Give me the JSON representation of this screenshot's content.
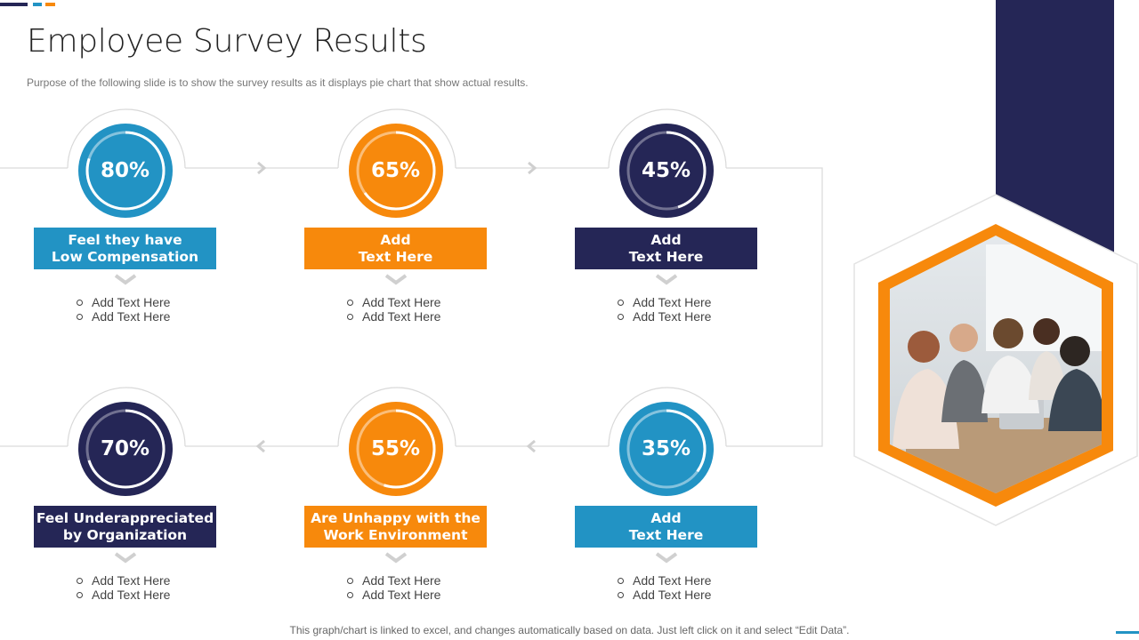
{
  "slide": {
    "title": "Employee Survey Results",
    "subtitle": "Purpose of the following slide is to show the survey results as it displays pie chart that show actual results.",
    "footer": "This graph/chart is linked to excel,  and changes automatically based on data. Just left click on it and select “Edit Data”."
  },
  "colors": {
    "blue": "#2293c4",
    "orange": "#f7890c",
    "navy": "#252656",
    "connector": "#d9d9d9"
  },
  "cards": [
    {
      "percent": 80,
      "percent_label": "80%",
      "color": "blue",
      "label": "Feel they have\nLow Compensation",
      "bullets": [
        "Add Text Here",
        "Add Text Here"
      ]
    },
    {
      "percent": 65,
      "percent_label": "65%",
      "color": "orange",
      "label": "Add\nText Here",
      "bullets": [
        "Add Text Here",
        "Add Text Here"
      ]
    },
    {
      "percent": 45,
      "percent_label": "45%",
      "color": "navy",
      "label": "Add\nText Here",
      "bullets": [
        "Add Text Here",
        "Add Text Here"
      ]
    },
    {
      "percent": 70,
      "percent_label": "70%",
      "color": "navy",
      "label": "Feel Underappreciated\nby Organization",
      "bullets": [
        "Add Text Here",
        "Add Text Here"
      ]
    },
    {
      "percent": 55,
      "percent_label": "55%",
      "color": "orange",
      "label": "Are Unhappy with the\nWork Environment",
      "bullets": [
        "Add Text Here",
        "Add Text Here"
      ]
    },
    {
      "percent": 35,
      "percent_label": "35%",
      "color": "blue",
      "label": "Add\nText Here",
      "bullets": [
        "Add Text Here",
        "Add Text Here"
      ]
    }
  ],
  "photo": {
    "subject": "team-meeting-photo"
  }
}
